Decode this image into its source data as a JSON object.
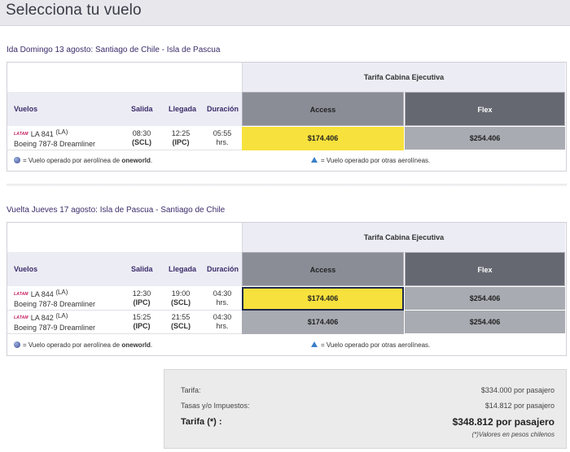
{
  "page": {
    "title": "Selecciona tu vuelo"
  },
  "outbound": {
    "title": "Ida Domingo 13 agosto: Santiago de Chile - Isla de Pascua",
    "tarifa_header": "Tarifa Cabina Ejecutiva",
    "columns": {
      "vuelos": "Vuelos",
      "salida": "Salida",
      "llegada": "Llegada",
      "duracion": "Duración",
      "access": "Access",
      "flex": "Flex"
    },
    "flights": [
      {
        "airline_logo": "LATAM",
        "code": "LA 841",
        "operator": "(LA)",
        "aircraft": "Boeing 787-8 Dreamliner",
        "dep_time": "08:30",
        "dep_airport": "(SCL)",
        "arr_time": "12:25",
        "arr_airport": "(IPC)",
        "duration": "05:55",
        "duration_unit": "hrs.",
        "access_price": "$174.406",
        "flex_price": "$254.406",
        "access_state": "selected-yellow"
      }
    ],
    "legend": {
      "oneworld_text": "= Vuelo operado por aerolínea de ",
      "oneworld_brand": "oneworld",
      "oneworld_end": ".",
      "other_text": "= Vuelo operado por otras aerolíneas."
    }
  },
  "return": {
    "title": "Vuelta Jueves 17 agosto: Isla de Pascua - Santiago de Chile",
    "tarifa_header": "Tarifa Cabina Ejecutiva",
    "columns": {
      "vuelos": "Vuelos",
      "salida": "Salida",
      "llegada": "Llegada",
      "duracion": "Duración",
      "access": "Access",
      "flex": "Flex"
    },
    "flights": [
      {
        "airline_logo": "LATAM",
        "code": "LA 844",
        "operator": "(LA)",
        "aircraft": "Boeing 787-8 Dreamliner",
        "dep_time": "12:30",
        "dep_airport": "(IPC)",
        "arr_time": "19:00",
        "arr_airport": "(SCL)",
        "duration": "04:30",
        "duration_unit": "hrs.",
        "access_price": "$174.406",
        "flex_price": "$254.406",
        "access_state": "selected-yellow-bordered"
      },
      {
        "airline_logo": "LATAM",
        "code": "LA 842",
        "operator": "(LA)",
        "aircraft": "Boeing 787-9 Dreamliner",
        "dep_time": "15:25",
        "dep_airport": "(IPC)",
        "arr_time": "21:55",
        "arr_airport": "(SCL)",
        "duration": "04:30",
        "duration_unit": "hrs.",
        "access_price": "$174.406",
        "flex_price": "$254.406",
        "access_state": "grey"
      }
    ],
    "legend": {
      "oneworld_text": "= Vuelo operado por aerolínea de ",
      "oneworld_brand": "oneworld",
      "oneworld_end": ".",
      "other_text": "= Vuelo operado por otras aerolíneas."
    }
  },
  "summary": {
    "tarifa_label": "Tarifa:",
    "tarifa_value": "$334.000 por pasajero",
    "tasas_label": "Tasas y/o Impuestos:",
    "tasas_value": "$14.812 por pasajero",
    "total_label": "Tarifa (*) :",
    "total_value": "$348.812 por pasajero",
    "note": "(*)Valores en pesos chilenos"
  },
  "colors": {
    "selected_fare": "#f7e13c",
    "access_header": "#8a8d96",
    "flex_header": "#656870",
    "unselected_fare": "#a9abb2",
    "header_bg": "#ececf4",
    "accent_text": "#3c2d6b"
  }
}
